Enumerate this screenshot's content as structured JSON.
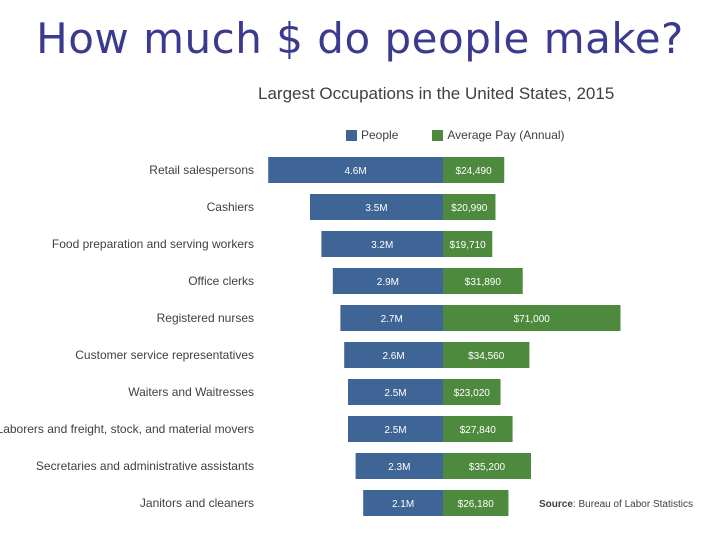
{
  "slide": {
    "title": "How much $ do people make?"
  },
  "chart_data": {
    "type": "bar",
    "title": "Largest Occupations in the United States, 2015",
    "categories": [
      "Retail salespersons",
      "Cashiers",
      "Food preparation and serving workers",
      "Office clerks",
      "Registered nurses",
      "Customer service representatives",
      "Waiters and Waitresses",
      "Laborers and freight, stock, and material movers",
      "Secretaries and administrative assistants",
      "Janitors and cleaners"
    ],
    "series": [
      {
        "name": "People",
        "values": [
          4.6,
          3.5,
          3.2,
          2.9,
          2.7,
          2.6,
          2.5,
          2.5,
          2.3,
          2.1
        ],
        "labels": [
          "4.6M",
          "3.5M",
          "3.2M",
          "2.9M",
          "2.7M",
          "2.6M",
          "2.5M",
          "2.5M",
          "2.3M",
          "2.1M"
        ],
        "color": "#3f6496"
      },
      {
        "name": "Average Pay (Annual)",
        "values": [
          24490,
          20990,
          19710,
          31890,
          71000,
          34560,
          23020,
          27840,
          35200,
          26180
        ],
        "labels": [
          "$24,490",
          "$20,990",
          "$19,710",
          "$31,890",
          "$71,000",
          "$34,560",
          "$23,020",
          "$27,840",
          "$35,200",
          "$26,180"
        ],
        "color": "#4e8a3e"
      }
    ],
    "legend": "top",
    "grid": false,
    "source_label": "Source",
    "source_text": ": Bureau of Labor Statistics"
  }
}
